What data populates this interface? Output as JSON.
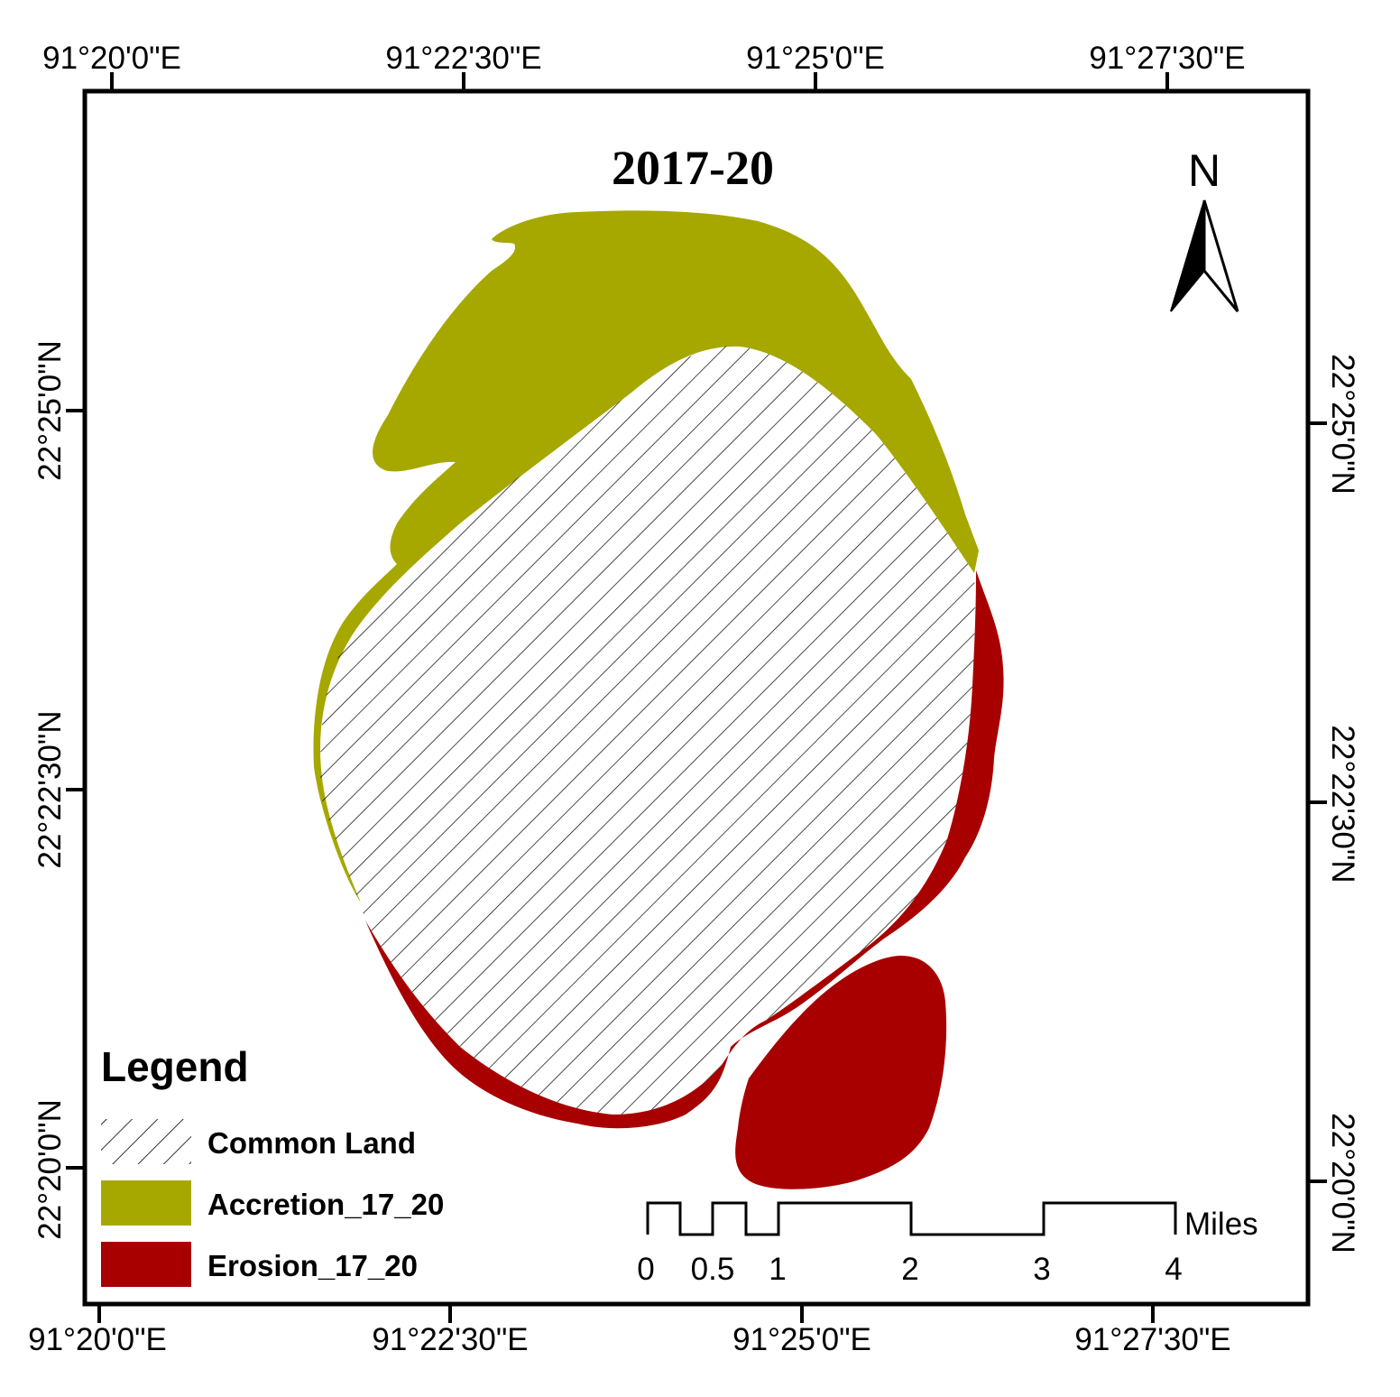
{
  "map": {
    "title": "2017-20",
    "north_label": "N",
    "colors": {
      "accretion": "#a6a800",
      "erosion": "#a80000",
      "common_land_hatch": "#000000",
      "frame": "#000000"
    },
    "top_ticks": [
      "91°20'0\"E",
      "91°22'30\"E",
      "91°25'0\"E",
      "91°27'30\"E"
    ],
    "bottom_ticks": [
      "91°20'0\"E",
      "91°22'30\"E",
      "91°25'0\"E",
      "91°27'30\"E"
    ],
    "left_ticks": [
      "22°25'0\"N",
      "22°22'30\"N",
      "22°20'0\"N"
    ],
    "right_ticks": [
      "22°25'0\"N",
      "22°22'30\"N",
      "22°20'0\"N"
    ]
  },
  "legend": {
    "title": "Legend",
    "items": [
      {
        "label": "Common Land",
        "symbol": "hatch"
      },
      {
        "label": "Accretion_17_20",
        "symbol": "accretion"
      },
      {
        "label": "Erosion_17_20",
        "symbol": "erosion"
      }
    ]
  },
  "scale_bar": {
    "labels": [
      "0",
      "0.5",
      "1",
      "2",
      "3",
      "4"
    ],
    "unit": "Miles"
  }
}
